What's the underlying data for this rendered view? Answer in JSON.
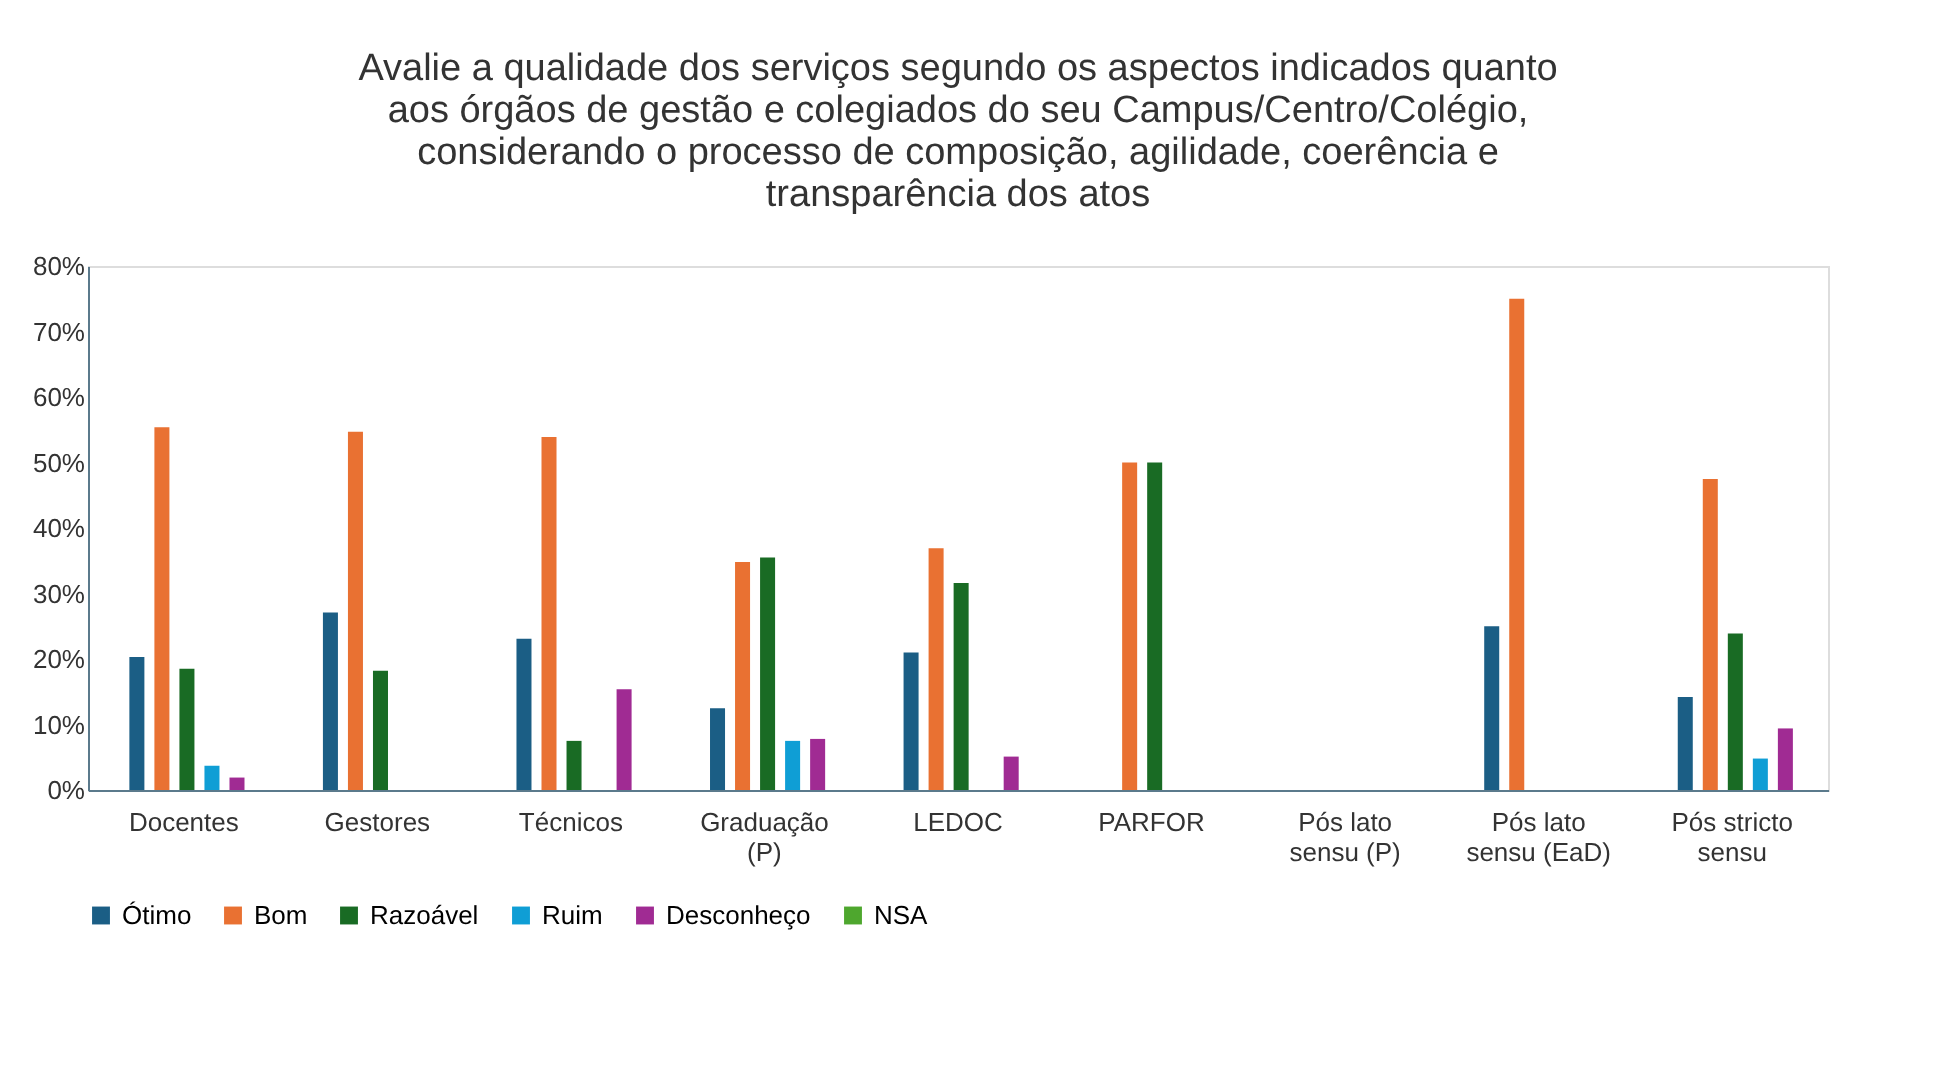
{
  "chart_data": {
    "type": "bar",
    "title": "Avalie a qualidade dos serviços segundo os aspectos indicados quanto aos órgãos de gestão e colegiados do seu Campus/Centro/Colégio, considerando o processo de composição, agilidade,  coerência e transparência dos atos",
    "categories": [
      "Docentes",
      "Gestores",
      "Técnicos",
      "Graduação (P)",
      "LEDOC",
      "PARFOR",
      "Pós lato sensu (P)",
      "Pós lato sensu (EaD)",
      "Pós stricto sensu"
    ],
    "series": [
      {
        "name": "Ótimo",
        "color": "#1b5e85",
        "values": [
          20.3,
          27.1,
          23.1,
          12.5,
          21.0,
          null,
          null,
          25,
          14.2
        ]
      },
      {
        "name": "Bom",
        "color": "#e97132",
        "values": [
          55.4,
          54.7,
          53.9,
          34.8,
          36.9,
          50,
          null,
          75,
          47.5
        ]
      },
      {
        "name": "Razoável",
        "color": "#196b24",
        "values": [
          18.5,
          18.2,
          7.5,
          35.5,
          31.6,
          50,
          null,
          null,
          23.9
        ]
      },
      {
        "name": "Ruim",
        "color": "#0f9ed5",
        "values": [
          3.7,
          null,
          null,
          7.5,
          null,
          null,
          null,
          null,
          4.8
        ]
      },
      {
        "name": "Desconheço",
        "color": "#a02b93",
        "values": [
          1.9,
          null,
          15.4,
          7.8,
          5.1,
          null,
          null,
          null,
          9.4
        ]
      },
      {
        "name": "NSA",
        "color": "#4ea72e",
        "values": [
          null,
          null,
          null,
          null,
          null,
          null,
          null,
          null,
          null
        ]
      }
    ],
    "ylim": [
      0,
      80
    ],
    "yticks": [
      {
        "value": 0,
        "label": "0%"
      },
      {
        "value": 10,
        "label": "10%"
      },
      {
        "value": 20,
        "label": "20%"
      },
      {
        "value": 30,
        "label": "30%"
      },
      {
        "value": 40,
        "label": "40%"
      },
      {
        "value": 50,
        "label": "50%"
      },
      {
        "value": 60,
        "label": "60%"
      },
      {
        "value": 70,
        "label": "70%"
      },
      {
        "value": 80,
        "label": "80%"
      }
    ],
    "grid": false,
    "legend": "bottom"
  }
}
